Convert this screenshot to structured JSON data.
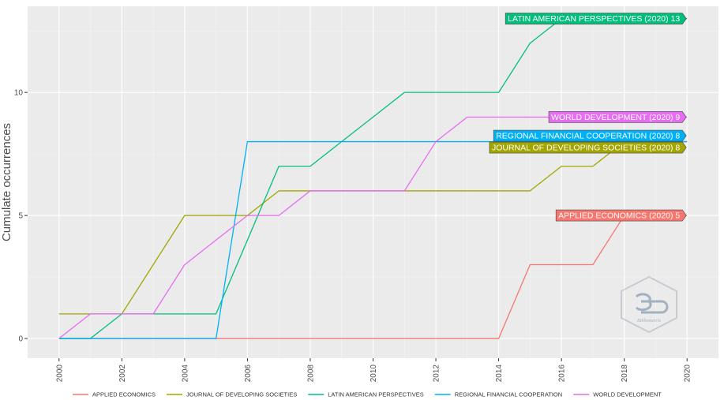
{
  "chart_data": {
    "type": "line",
    "title": "",
    "xlabel": "",
    "ylabel": "Cumulate occurrences",
    "x": [
      2000,
      2001,
      2002,
      2003,
      2004,
      2005,
      2006,
      2007,
      2008,
      2009,
      2010,
      2011,
      2012,
      2013,
      2014,
      2015,
      2016,
      2017,
      2018,
      2019,
      2020
    ],
    "xlim": [
      1999,
      2021
    ],
    "ylim": [
      -0.8,
      13.5
    ],
    "xticks": [
      "2000",
      "2002",
      "2004",
      "2006",
      "2008",
      "2010",
      "2012",
      "2014",
      "2016",
      "2018",
      "2020"
    ],
    "yticks": [
      "0",
      "5",
      "10"
    ],
    "grid": true,
    "legend_position": "bottom",
    "series": [
      {
        "name": "APPLIED ECONOMICS",
        "color": "#F8766D",
        "values": [
          0,
          0,
          0,
          0,
          0,
          0,
          0,
          0,
          0,
          0,
          0,
          0,
          0,
          0,
          0,
          3,
          3,
          3,
          5,
          5,
          5
        ],
        "end_label": "APPLIED ECONOMICS (2020) 5"
      },
      {
        "name": "JOURNAL OF DEVELOPING SOCIETIES",
        "color": "#A3A500",
        "values": [
          1,
          1,
          1,
          3,
          5,
          5,
          5,
          6,
          6,
          6,
          6,
          6,
          6,
          6,
          6,
          6,
          7,
          7,
          8,
          8,
          8
        ],
        "end_label": "JOURNAL OF DEVELOPING SOCIETIES (2020) 8"
      },
      {
        "name": "LATIN AMERICAN PERSPECTIVES",
        "color": "#00BF7D",
        "values": [
          0,
          0,
          1,
          1,
          1,
          1,
          4,
          7,
          7,
          8,
          9,
          10,
          10,
          10,
          10,
          12,
          13,
          13,
          13,
          13,
          13
        ],
        "end_label": "LATIN AMERICAN PERSPECTIVES (2020) 13"
      },
      {
        "name": "REGIONAL FINANCIAL COOPERATION",
        "color": "#00B0F6",
        "values": [
          0,
          0,
          0,
          0,
          0,
          0,
          8,
          8,
          8,
          8,
          8,
          8,
          8,
          8,
          8,
          8,
          8,
          8,
          8,
          8,
          8
        ],
        "end_label": "REGIONAL FINANCIAL COOPERATION (2020) 8"
      },
      {
        "name": "WORLD DEVELOPMENT",
        "color": "#E76BF3",
        "values": [
          0,
          1,
          1,
          1,
          3,
          4,
          5,
          5,
          6,
          6,
          6,
          6,
          8,
          9,
          9,
          9,
          9,
          9,
          9,
          9,
          9
        ],
        "end_label": "WORLD DEVELOPMENT (2020) 9"
      }
    ]
  },
  "watermark": {
    "icon": "bibliometrix-logo-icon",
    "text": "Bibliometrix"
  }
}
